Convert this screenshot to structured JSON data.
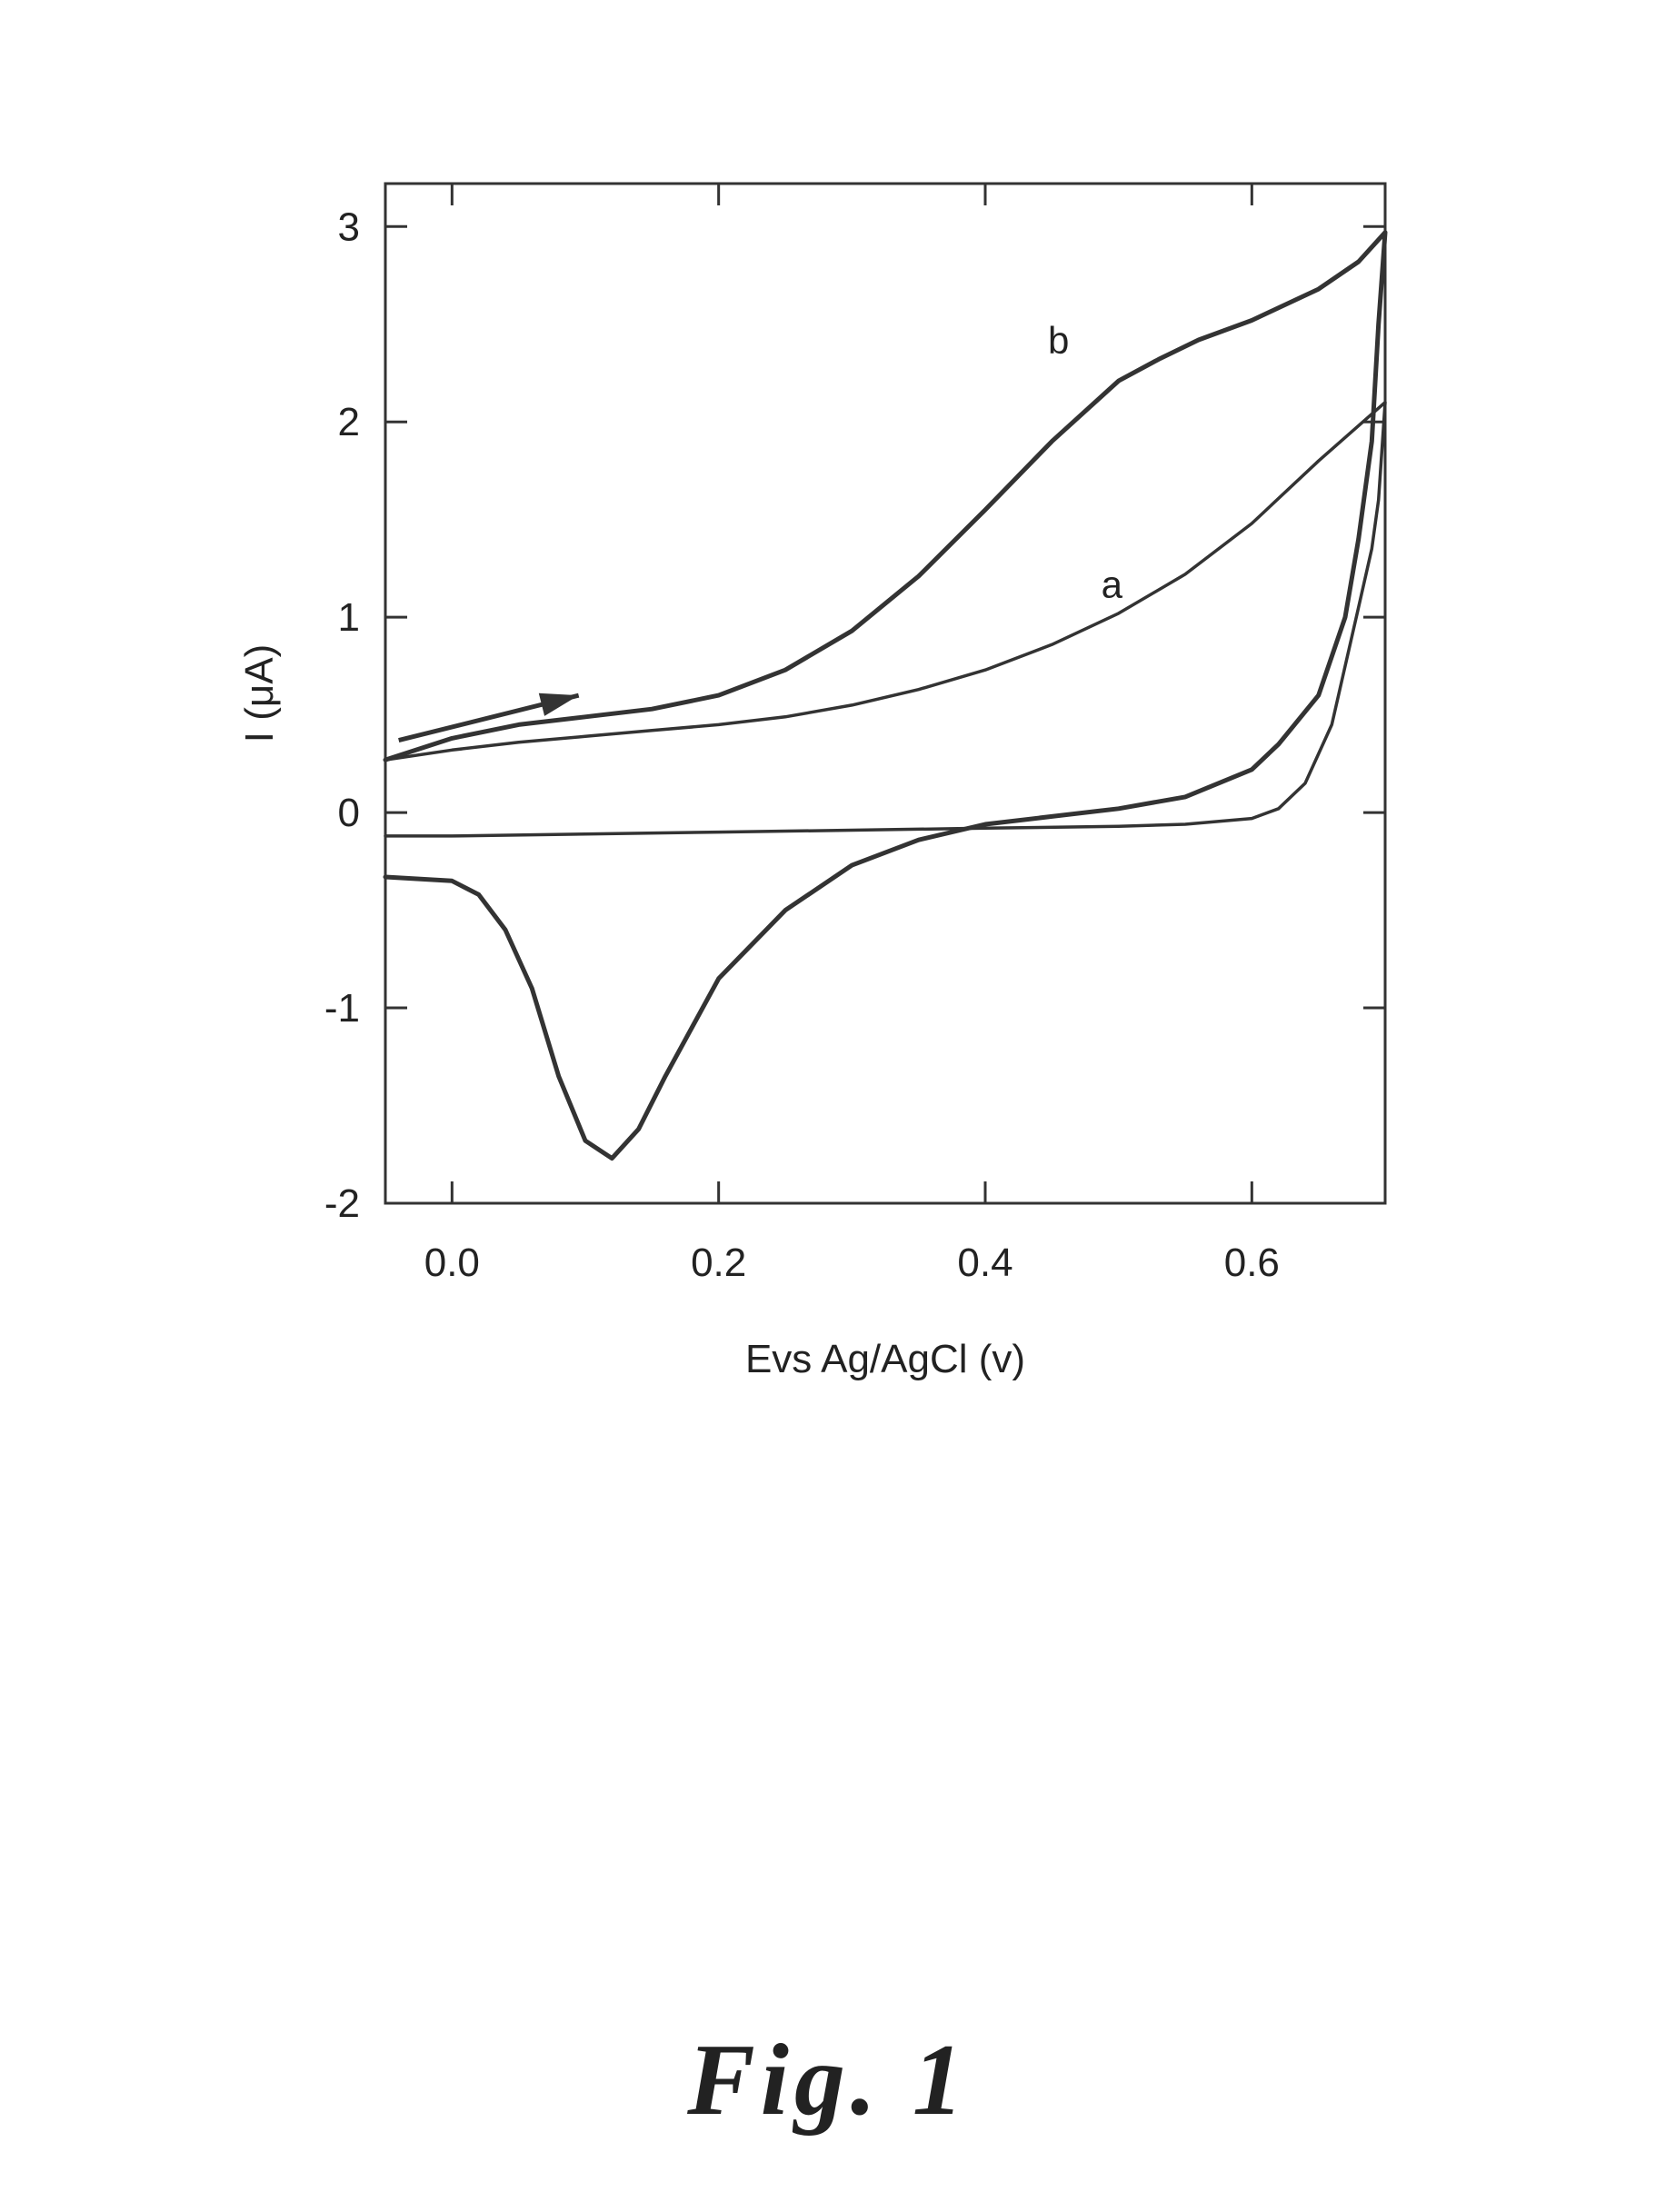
{
  "chart_data": {
    "type": "line",
    "xlabel": "Evs Ag/AgCl (v)",
    "ylabel": "I (μA)",
    "xlim": [
      -0.05,
      0.7
    ],
    "ylim": [
      -2,
      3.22
    ],
    "xticks": [
      0.0,
      0.2,
      0.4,
      0.6
    ],
    "xtick_labels": [
      "0.0",
      "0.2",
      "0.4",
      "0.6"
    ],
    "yticks": [
      -2,
      -1,
      0,
      1,
      2,
      3
    ],
    "ytick_labels": [
      "-2",
      "-1",
      "0",
      "1",
      "2",
      "3"
    ],
    "grid": false,
    "scan_direction_arrow": {
      "from": [
        -0.04,
        0.37
      ],
      "to": [
        0.095,
        0.6
      ]
    },
    "series": [
      {
        "name": "a",
        "label_at": [
          0.495,
          1.1
        ],
        "color": "#333333",
        "points": [
          [
            -0.05,
            0.27
          ],
          [
            0.0,
            0.32
          ],
          [
            0.05,
            0.36
          ],
          [
            0.1,
            0.39
          ],
          [
            0.15,
            0.42
          ],
          [
            0.2,
            0.45
          ],
          [
            0.25,
            0.49
          ],
          [
            0.3,
            0.55
          ],
          [
            0.35,
            0.63
          ],
          [
            0.4,
            0.73
          ],
          [
            0.45,
            0.86
          ],
          [
            0.5,
            1.02
          ],
          [
            0.55,
            1.22
          ],
          [
            0.6,
            1.48
          ],
          [
            0.65,
            1.8
          ],
          [
            0.7,
            2.1
          ],
          [
            0.695,
            1.6
          ],
          [
            0.69,
            1.35
          ],
          [
            0.68,
            1.05
          ],
          [
            0.67,
            0.75
          ],
          [
            0.66,
            0.45
          ],
          [
            0.64,
            0.15
          ],
          [
            0.62,
            0.02
          ],
          [
            0.6,
            -0.03
          ],
          [
            0.55,
            -0.06
          ],
          [
            0.5,
            -0.07
          ],
          [
            0.4,
            -0.08
          ],
          [
            0.3,
            -0.09
          ],
          [
            0.2,
            -0.1
          ],
          [
            0.1,
            -0.11
          ],
          [
            0.0,
            -0.12
          ],
          [
            -0.05,
            -0.12
          ]
        ]
      },
      {
        "name": "b",
        "label_at": [
          0.455,
          2.35
        ],
        "color": "#333333",
        "points": [
          [
            -0.05,
            0.27
          ],
          [
            0.0,
            0.38
          ],
          [
            0.05,
            0.45
          ],
          [
            0.1,
            0.49
          ],
          [
            0.15,
            0.53
          ],
          [
            0.2,
            0.6
          ],
          [
            0.25,
            0.73
          ],
          [
            0.3,
            0.93
          ],
          [
            0.35,
            1.21
          ],
          [
            0.4,
            1.55
          ],
          [
            0.45,
            1.9
          ],
          [
            0.5,
            2.21
          ],
          [
            0.53,
            2.32
          ],
          [
            0.56,
            2.42
          ],
          [
            0.6,
            2.52
          ],
          [
            0.65,
            2.68
          ],
          [
            0.68,
            2.82
          ],
          [
            0.7,
            2.97
          ],
          [
            0.695,
            2.5
          ],
          [
            0.69,
            1.9
          ],
          [
            0.68,
            1.4
          ],
          [
            0.67,
            1.0
          ],
          [
            0.65,
            0.6
          ],
          [
            0.62,
            0.35
          ],
          [
            0.6,
            0.22
          ],
          [
            0.55,
            0.08
          ],
          [
            0.5,
            0.02
          ],
          [
            0.45,
            -0.02
          ],
          [
            0.4,
            -0.06
          ],
          [
            0.35,
            -0.14
          ],
          [
            0.3,
            -0.27
          ],
          [
            0.25,
            -0.5
          ],
          [
            0.2,
            -0.85
          ],
          [
            0.16,
            -1.35
          ],
          [
            0.14,
            -1.62
          ],
          [
            0.12,
            -1.77
          ],
          [
            0.1,
            -1.68
          ],
          [
            0.08,
            -1.35
          ],
          [
            0.06,
            -0.9
          ],
          [
            0.04,
            -0.6
          ],
          [
            0.02,
            -0.42
          ],
          [
            0.0,
            -0.35
          ],
          [
            -0.05,
            -0.33
          ]
        ]
      }
    ]
  },
  "caption": "Fig.   1"
}
